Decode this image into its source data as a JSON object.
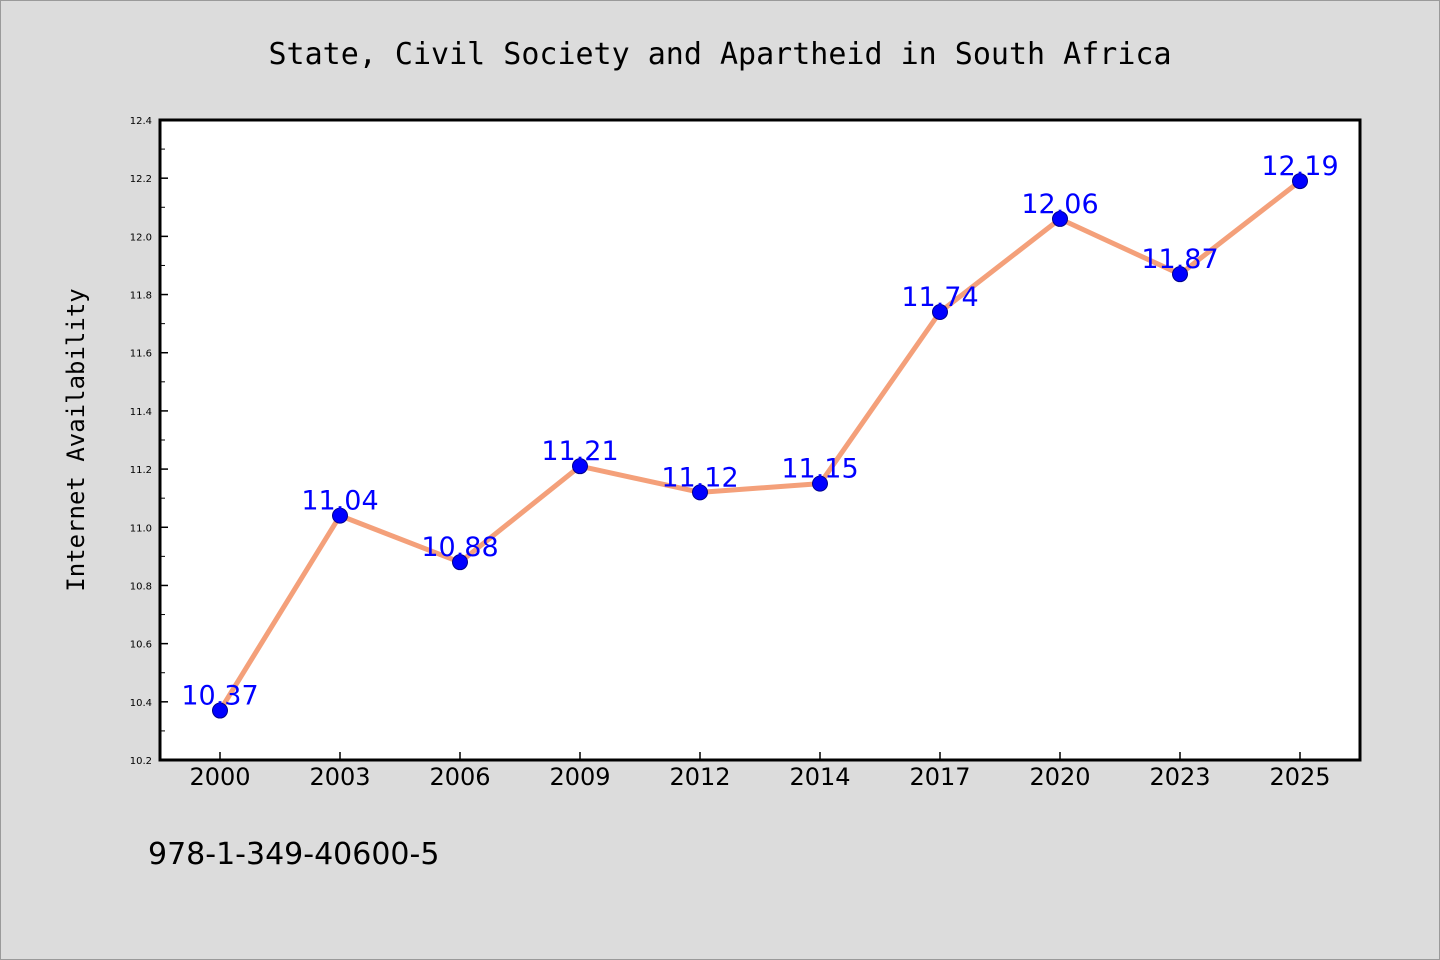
{
  "chart_data": {
    "type": "line",
    "title": "State, Civil Society and Apartheid in South Africa",
    "xlabel": "",
    "ylabel": "Internet Availability",
    "categories": [
      "2000",
      "2003",
      "2006",
      "2009",
      "2012",
      "2014",
      "2017",
      "2020",
      "2023",
      "2025"
    ],
    "series": [
      {
        "values": [
          10.37,
          11.04,
          10.88,
          11.21,
          11.12,
          11.15,
          11.74,
          12.06,
          11.87,
          12.19
        ],
        "data_labels": [
          "10.37",
          "11.04",
          "10.88",
          "11.21",
          "11.12",
          "11.15",
          "11.74",
          "12.06",
          "11.87",
          "12.19"
        ],
        "line_color": "#f4a07a",
        "marker_color": "#0000ff"
      }
    ],
    "ylim": [
      10.2,
      12.4
    ],
    "yticks": [
      10.2,
      10.4,
      10.6,
      10.8,
      11.0,
      11.2,
      11.4,
      11.6,
      11.8,
      12.0,
      12.2,
      12.4
    ],
    "ytick_labels": [
      "10.2",
      "10.4",
      "10.6",
      "10.8",
      "11.0",
      "11.2",
      "11.4",
      "11.6",
      "11.8",
      "12.0",
      "12.2",
      "12.4"
    ],
    "grid": false,
    "legend": "none"
  },
  "footer": {
    "isbn": "978-1-349-40600-5"
  },
  "colors": {
    "background": "#dcdcdc",
    "plot_background": "#ffffff"
  }
}
